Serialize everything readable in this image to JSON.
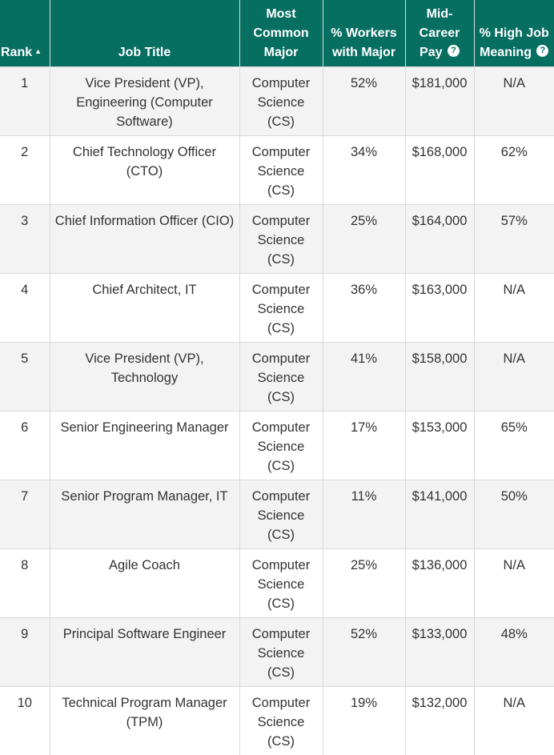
{
  "header": {
    "rank": "Rank",
    "job_title": "Job Title",
    "major_line1": "Most",
    "major_line2": "Common",
    "major_line3": "Major",
    "pct_line1": "% Workers",
    "pct_line2": "with Major",
    "pay_line1": "Mid-",
    "pay_line2": "Career",
    "pay_line3": "Pay",
    "meaning_line1": "% High Job",
    "meaning_line2": "Meaning",
    "sort_icon": "sort-ascending-icon",
    "help_icon": "question-circle-icon",
    "accent_color": "#076e62"
  },
  "rows": [
    {
      "rank": "1",
      "job_title": "Vice President (VP), Engineering (Computer Software)",
      "major": "Computer Science (CS)",
      "pct_workers": "52%",
      "pay": "$181,000",
      "meaning": "N/A"
    },
    {
      "rank": "2",
      "job_title": "Chief Technology Officer (CTO)",
      "major": "Computer Science (CS)",
      "pct_workers": "34%",
      "pay": "$168,000",
      "meaning": "62%"
    },
    {
      "rank": "3",
      "job_title": "Chief Information Officer (CIO)",
      "major": "Computer Science (CS)",
      "pct_workers": "25%",
      "pay": "$164,000",
      "meaning": "57%"
    },
    {
      "rank": "4",
      "job_title": "Chief Architect, IT",
      "major": "Computer Science (CS)",
      "pct_workers": "36%",
      "pay": "$163,000",
      "meaning": "N/A"
    },
    {
      "rank": "5",
      "job_title": "Vice President (VP), Technology",
      "major": "Computer Science (CS)",
      "pct_workers": "41%",
      "pay": "$158,000",
      "meaning": "N/A"
    },
    {
      "rank": "6",
      "job_title": "Senior Engineering Manager",
      "major": "Computer Science (CS)",
      "pct_workers": "17%",
      "pay": "$153,000",
      "meaning": "65%"
    },
    {
      "rank": "7",
      "job_title": "Senior Program Manager, IT",
      "major": "Computer Science (CS)",
      "pct_workers": "11%",
      "pay": "$141,000",
      "meaning": "50%"
    },
    {
      "rank": "8",
      "job_title": "Agile Coach",
      "major": "Computer Science (CS)",
      "pct_workers": "25%",
      "pay": "$136,000",
      "meaning": "N/A"
    },
    {
      "rank": "9",
      "job_title": "Principal Software Engineer",
      "major": "Computer Science (CS)",
      "pct_workers": "52%",
      "pay": "$133,000",
      "meaning": "48%"
    },
    {
      "rank": "10",
      "job_title": "Technical Program Manager (TPM)",
      "major": "Computer Science (CS)",
      "pct_workers": "19%",
      "pay": "$132,000",
      "meaning": "N/A"
    }
  ]
}
